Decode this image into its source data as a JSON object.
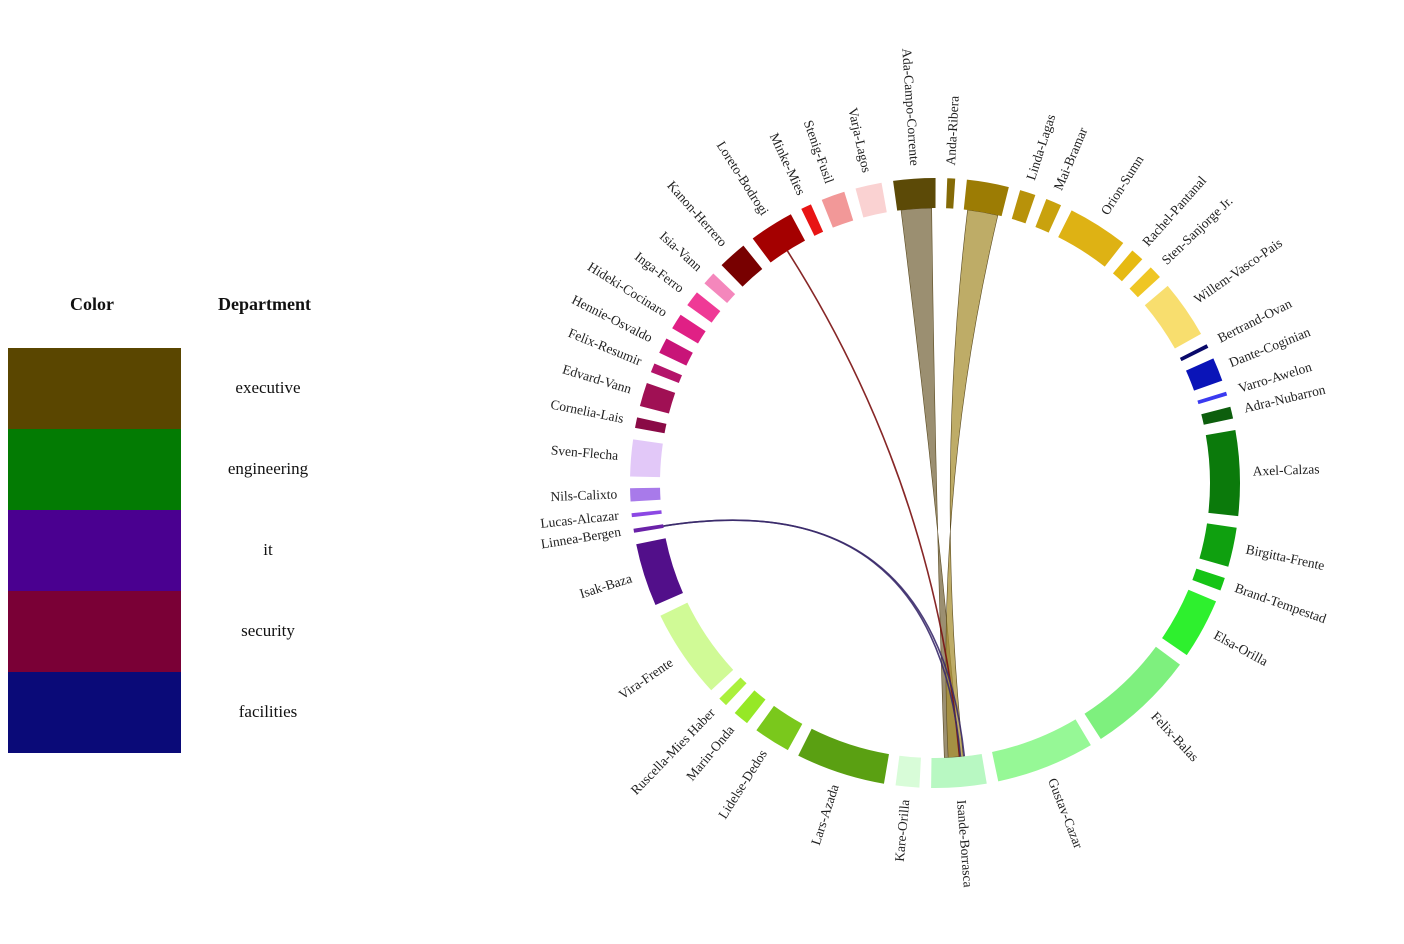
{
  "legend": {
    "color_header": "Color",
    "department_header": "Department",
    "items": [
      {
        "label": "executive",
        "color": "#5a4600"
      },
      {
        "label": "engineering",
        "color": "#037b03"
      },
      {
        "label": "it",
        "color": "#4a0090"
      },
      {
        "label": "security",
        "color": "#7a0036"
      },
      {
        "label": "facilities",
        "color": "#0a0a78"
      }
    ]
  },
  "chord": {
    "nodes": [
      {
        "name": "Ada-Campo-Corrente",
        "color": "#5c4a07",
        "size": 3.2
      },
      {
        "name": "Anda-Ribera",
        "color": "#846a06",
        "size": 0.6
      },
      {
        "name": "",
        "color": "#9c7c04",
        "size": 3.2
      },
      {
        "name": "Linda-Lagas",
        "color": "#b8920a",
        "size": 1.2
      },
      {
        "name": "Mai-Bramar",
        "color": "#c9a20e",
        "size": 1.2
      },
      {
        "name": "Orion-Sumn",
        "color": "#deb214",
        "size": 4.6
      },
      {
        "name": "Rachel-Pantanal",
        "color": "#e6ba12",
        "size": 1.0
      },
      {
        "name": "Sten-Sanjorge Jr.",
        "color": "#efc624",
        "size": 1.0
      },
      {
        "name": "Willem-Vasco-Pais",
        "color": "#f8de6e",
        "size": 4.4
      },
      {
        "name": "Bertrand-Ovan",
        "color": "#0a0a6a",
        "size": 0.3
      },
      {
        "name": "Dante-Coginian",
        "color": "#0a14b8",
        "size": 1.8
      },
      {
        "name": "Varro-Awelon",
        "color": "#3a3af0",
        "size": 0.3
      },
      {
        "name": "Adra-Nubarron",
        "color": "#0d5e0d",
        "size": 0.9
      },
      {
        "name": "Axel-Calzas",
        "color": "#0b7a0b",
        "size": 6.5
      },
      {
        "name": "Birgitta-Frente",
        "color": "#0fa00f",
        "size": 3.0
      },
      {
        "name": "Brand-Tempestad",
        "color": "#16c416",
        "size": 1.0
      },
      {
        "name": "Elsa-Orilla",
        "color": "#2ef02e",
        "size": 4.6
      },
      {
        "name": "Felix-Balas",
        "color": "#7ef07e",
        "size": 8.2
      },
      {
        "name": "Gustav-Cazar",
        "color": "#96f896",
        "size": 7.5
      },
      {
        "name": "Isande-Borrasca",
        "color": "#b8f8c2",
        "size": 4.2
      },
      {
        "name": "Kare-Orilla",
        "color": "#d8fcd8",
        "size": 1.8
      },
      {
        "name": "Lars-Azada",
        "color": "#5aa012",
        "size": 6.8
      },
      {
        "name": "Lidelse-Dedos",
        "color": "#7ac81c",
        "size": 2.8
      },
      {
        "name": "Marin-Onda",
        "color": "#96e826",
        "size": 1.2
      },
      {
        "name": "Ruscella-Mies Haber",
        "color": "#aaf03c",
        "size": 0.7
      },
      {
        "name": "Vira-Frente",
        "color": "#d0fa96",
        "size": 6.8
      },
      {
        "name": "Isak-Baza",
        "color": "#520f8a",
        "size": 4.8
      },
      {
        "name": "Linnea-Bergen",
        "color": "#6a22a8",
        "size": 0.3
      },
      {
        "name": "Lucas-Alcazar",
        "color": "#8c48e4",
        "size": 0.3
      },
      {
        "name": "Nils-Calixto",
        "color": "#a87aea",
        "size": 1.0
      },
      {
        "name": "Sven-Flecha",
        "color": "#e2c8f8",
        "size": 2.8
      },
      {
        "name": "Cornelia-Lais",
        "color": "#8a0a46",
        "size": 0.8
      },
      {
        "name": "Edvard-Vann",
        "color": "#a01054",
        "size": 1.8
      },
      {
        "name": "Felix-Resumir",
        "color": "#b4146a",
        "size": 0.7
      },
      {
        "name": "Hennie-Osvaldo",
        "color": "#c81478",
        "size": 1.2
      },
      {
        "name": "Hideki-Cocinaro",
        "color": "#e02085",
        "size": 1.2
      },
      {
        "name": "Inga-Ferro",
        "color": "#ef3a96",
        "size": 1.2
      },
      {
        "name": "Isia-Vann",
        "color": "#f487bc",
        "size": 1.0
      },
      {
        "name": "Kanon-Herrero",
        "color": "#780000",
        "size": 2.2
      },
      {
        "name": "Loreto-Bodrogi",
        "color": "#a40000",
        "size": 3.4
      },
      {
        "name": "Minke-Mies",
        "color": "#e81414",
        "size": 0.8
      },
      {
        "name": "Stenig-Fusil",
        "color": "#f29898",
        "size": 1.8
      },
      {
        "name": "Varja-Lagos",
        "color": "#fad2d2",
        "size": 2.0
      }
    ],
    "links": [
      {
        "from": 0,
        "to": 19,
        "color": "#7a6a42"
      },
      {
        "from": 2,
        "to": 19,
        "color": "#a89034"
      },
      {
        "from": 39,
        "to": 19,
        "color": "#7a1010"
      },
      {
        "from": 27,
        "to": 19,
        "color": "#3a2a6a"
      },
      {
        "from": 27,
        "to": 19,
        "color": "#3a2a6a"
      }
    ]
  }
}
